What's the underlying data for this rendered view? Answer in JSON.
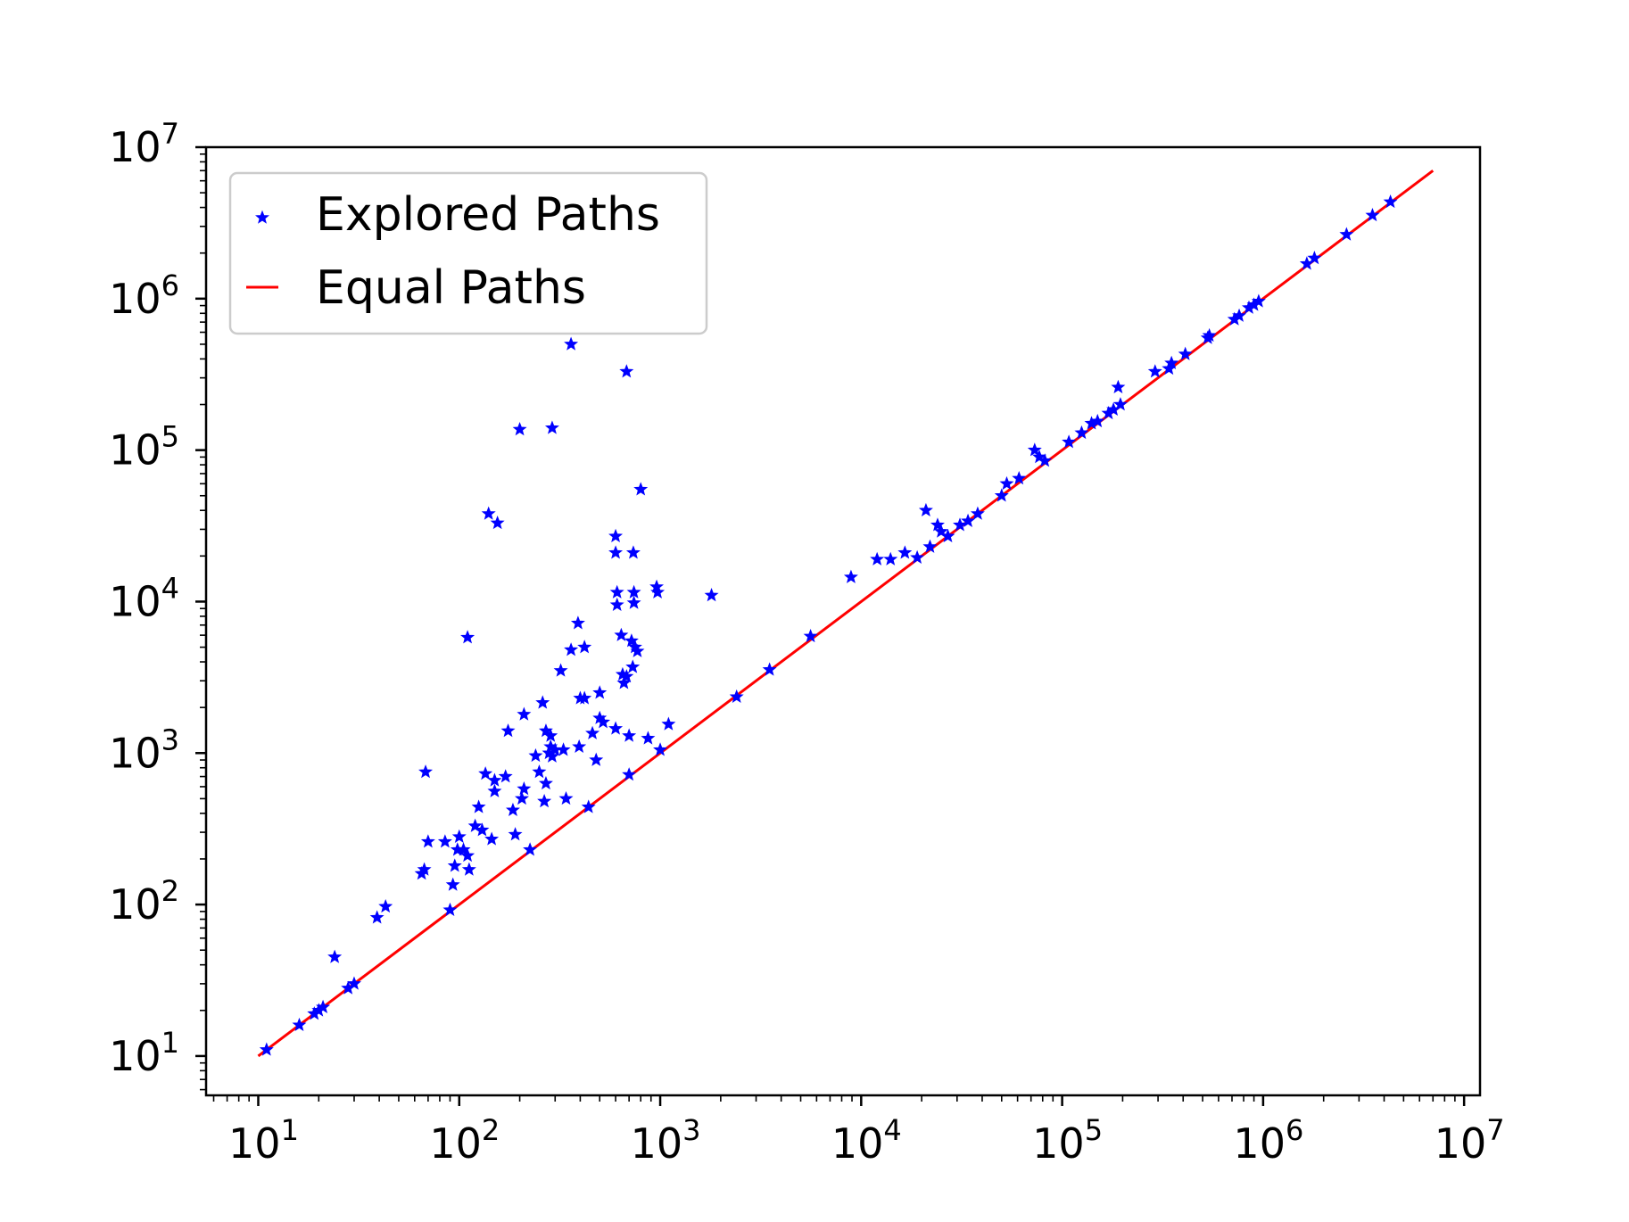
{
  "chart_data": {
    "type": "scatter",
    "title": "",
    "xlabel": "",
    "ylabel": "",
    "xscale": "log",
    "yscale": "log",
    "xlim": [
      5.5,
      12000000
    ],
    "ylim": [
      5.5,
      10000000
    ],
    "grid": false,
    "legend_placement": "top-left",
    "x_ticks": [
      10,
      100,
      1000,
      10000,
      100000,
      1000000,
      10000000
    ],
    "y_ticks": [
      10,
      100,
      1000,
      10000,
      100000,
      1000000,
      10000000
    ],
    "tick_labels": {
      "x": [
        {
          "base": "10",
          "exp": "1"
        },
        {
          "base": "10",
          "exp": "2"
        },
        {
          "base": "10",
          "exp": "3"
        },
        {
          "base": "10",
          "exp": "4"
        },
        {
          "base": "10",
          "exp": "5"
        },
        {
          "base": "10",
          "exp": "6"
        },
        {
          "base": "10",
          "exp": "7"
        }
      ],
      "y": [
        {
          "base": "10",
          "exp": "1"
        },
        {
          "base": "10",
          "exp": "2"
        },
        {
          "base": "10",
          "exp": "3"
        },
        {
          "base": "10",
          "exp": "4"
        },
        {
          "base": "10",
          "exp": "5"
        },
        {
          "base": "10",
          "exp": "6"
        },
        {
          "base": "10",
          "exp": "7"
        }
      ]
    },
    "series": [
      {
        "name": "Explored Paths",
        "kind": "scatter",
        "marker": "star",
        "color": "#0000ff",
        "points": [
          [
            11,
            11
          ],
          [
            16,
            16
          ],
          [
            19,
            19
          ],
          [
            20,
            20
          ],
          [
            21,
            21
          ],
          [
            28,
            28
          ],
          [
            30,
            30
          ],
          [
            24,
            45
          ],
          [
            39,
            82
          ],
          [
            43,
            97
          ],
          [
            65,
            160
          ],
          [
            67,
            170
          ],
          [
            70,
            260
          ],
          [
            68,
            750
          ],
          [
            85,
            260
          ],
          [
            90,
            92
          ],
          [
            93,
            135
          ],
          [
            95,
            180
          ],
          [
            98,
            230
          ],
          [
            100,
            280
          ],
          [
            105,
            230
          ],
          [
            110,
            210
          ],
          [
            112,
            170
          ],
          [
            110,
            5800
          ],
          [
            120,
            330
          ],
          [
            125,
            440
          ],
          [
            130,
            310
          ],
          [
            135,
            730
          ],
          [
            140,
            38000
          ],
          [
            145,
            270
          ],
          [
            150,
            560
          ],
          [
            150,
            660
          ],
          [
            155,
            33000
          ],
          [
            170,
            700
          ],
          [
            175,
            1400
          ],
          [
            185,
            420
          ],
          [
            190,
            290
          ],
          [
            200,
            137000
          ],
          [
            205,
            500
          ],
          [
            210,
            580
          ],
          [
            210,
            1800
          ],
          [
            225,
            230
          ],
          [
            240,
            960
          ],
          [
            250,
            750
          ],
          [
            260,
            2150
          ],
          [
            265,
            480
          ],
          [
            270,
            630
          ],
          [
            270,
            1400
          ],
          [
            280,
            1000
          ],
          [
            285,
            1100
          ],
          [
            285,
            1300
          ],
          [
            290,
            140000
          ],
          [
            290,
            950
          ],
          [
            300,
            1050
          ],
          [
            320,
            3500
          ],
          [
            330,
            1050
          ],
          [
            340,
            500
          ],
          [
            360,
            4800
          ],
          [
            360,
            500000
          ],
          [
            390,
            7200
          ],
          [
            395,
            1100
          ],
          [
            400,
            2300
          ],
          [
            420,
            2300
          ],
          [
            420,
            5000
          ],
          [
            440,
            440
          ],
          [
            460,
            1350
          ],
          [
            480,
            900
          ],
          [
            500,
            1700
          ],
          [
            500,
            2500
          ],
          [
            520,
            1600
          ],
          [
            600,
            27000
          ],
          [
            600,
            21000
          ],
          [
            610,
            11500
          ],
          [
            610,
            9500
          ],
          [
            600,
            1450
          ],
          [
            640,
            6000
          ],
          [
            650,
            3300
          ],
          [
            660,
            2900
          ],
          [
            680,
            3200
          ],
          [
            680,
            330000
          ],
          [
            700,
            720
          ],
          [
            700,
            1300
          ],
          [
            720,
            5500
          ],
          [
            730,
            3700
          ],
          [
            735,
            21000
          ],
          [
            740,
            11500
          ],
          [
            740,
            9800
          ],
          [
            750,
            5000
          ],
          [
            770,
            4700
          ],
          [
            800,
            55000
          ],
          [
            870,
            1250
          ],
          [
            960,
            12500
          ],
          [
            970,
            11500
          ],
          [
            1000,
            1050
          ],
          [
            1100,
            1550
          ],
          [
            1800,
            11000
          ],
          [
            2400,
            2350
          ],
          [
            3500,
            3550
          ],
          [
            5600,
            5900
          ],
          [
            8900,
            14500
          ],
          [
            12000,
            19000
          ],
          [
            14000,
            19000
          ],
          [
            16500,
            21000
          ],
          [
            19000,
            19500
          ],
          [
            21000,
            40000
          ],
          [
            22000,
            23000
          ],
          [
            24000,
            32000
          ],
          [
            25000,
            29000
          ],
          [
            27000,
            27000
          ],
          [
            31000,
            32000
          ],
          [
            34000,
            34000
          ],
          [
            38000,
            38000
          ],
          [
            50000,
            50000
          ],
          [
            53000,
            60000
          ],
          [
            61000,
            65000
          ],
          [
            73000,
            100000
          ],
          [
            77000,
            90000
          ],
          [
            82000,
            85000
          ],
          [
            108000,
            113000
          ],
          [
            125000,
            130000
          ],
          [
            140000,
            150000
          ],
          [
            150000,
            155000
          ],
          [
            170000,
            175000
          ],
          [
            180000,
            185000
          ],
          [
            190000,
            260000
          ],
          [
            195000,
            200000
          ],
          [
            290000,
            330000
          ],
          [
            340000,
            345000
          ],
          [
            350000,
            375000
          ],
          [
            410000,
            430000
          ],
          [
            530000,
            550000
          ],
          [
            540000,
            570000
          ],
          [
            720000,
            730000
          ],
          [
            760000,
            770000
          ],
          [
            850000,
            870000
          ],
          [
            900000,
            910000
          ],
          [
            950000,
            960000
          ],
          [
            1650000,
            1700000
          ],
          [
            1800000,
            1850000
          ],
          [
            2600000,
            2650000
          ],
          [
            3500000,
            3550000
          ],
          [
            4300000,
            4350000
          ]
        ]
      },
      {
        "name": "Equal Paths",
        "kind": "line",
        "color": "#ff0000",
        "x": [
          10,
          7000000
        ],
        "y": [
          10,
          7000000
        ]
      }
    ]
  }
}
